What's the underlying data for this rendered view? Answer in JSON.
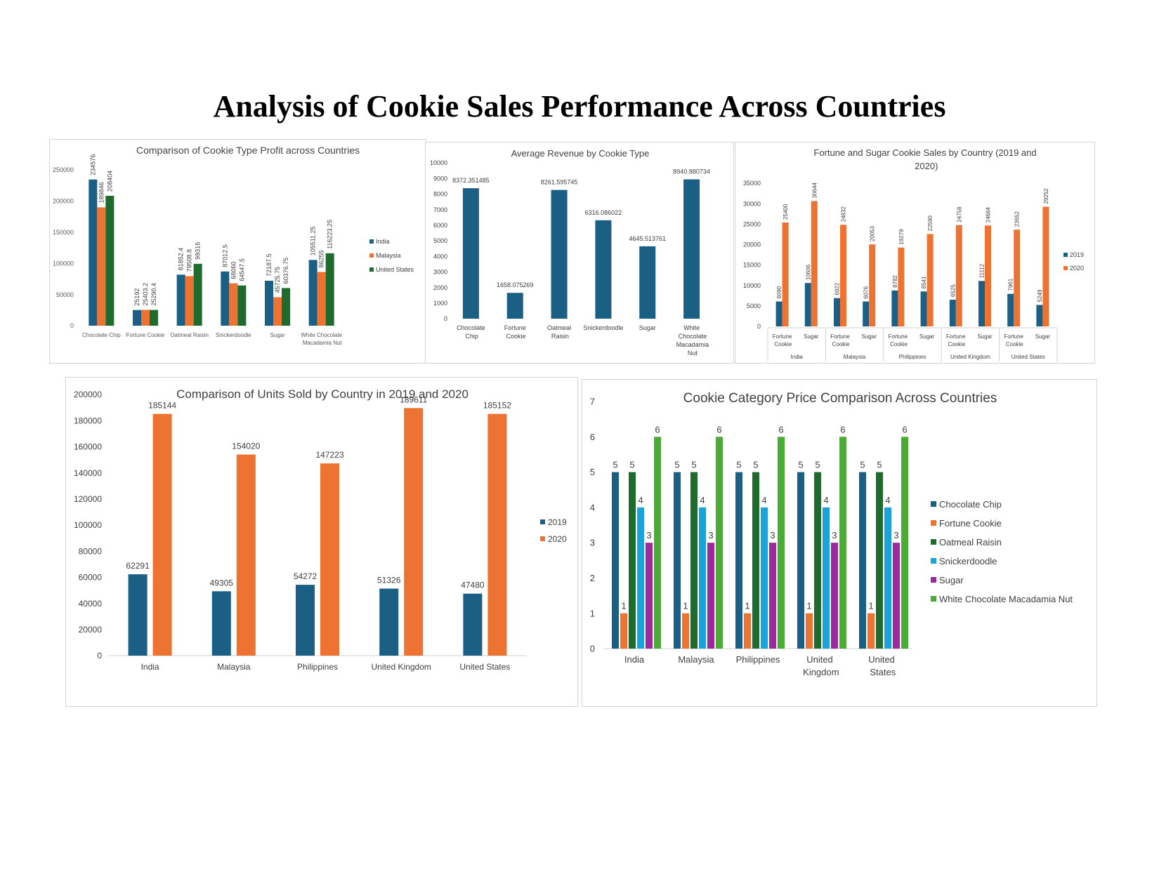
{
  "page": {
    "title": "Analysis of Cookie Sales Performance Across Countries"
  },
  "colors": {
    "blue": "#1b5f85",
    "orange": "#ec7332",
    "darkgreen": "#1e6b2d",
    "lightblue": "#1aa3d9",
    "purple": "#9b2a9b",
    "green": "#4aac34"
  },
  "chart_data": [
    {
      "type": "bar",
      "title": "Comparison of Cookie Type Profit across Countries",
      "categories": [
        "Chocolate Chip",
        "Fortune Cookie",
        "Oatmeal Raisin",
        "Snickerdoodle",
        "Sugar",
        "White Chocolate Macadamia Nut"
      ],
      "series": [
        {
          "name": "India",
          "values": [
            234576,
            25192,
            81852.4,
            87012.5,
            72187.5,
            105511.25
          ]
        },
        {
          "name": "Malaysia",
          "values": [
            189846,
            25403.2,
            79508.8,
            68060,
            45725.75,
            86255
          ]
        },
        {
          "name": "United States",
          "values": [
            208404,
            25290.4,
            99316,
            64547.5,
            60376.75,
            116223.25
          ]
        }
      ],
      "ylim": [
        0,
        250000
      ],
      "yticks": [
        "0",
        "50000",
        "100000",
        "150000",
        "200000",
        "250000"
      ],
      "legend": "right",
      "grid": false
    },
    {
      "type": "bar",
      "title": "Average Revenue by Cookie Type",
      "categories": [
        "Chocolate Chip",
        "Fortune Cookie",
        "Oatmeal Raisin",
        "Snickerdoodle",
        "Sugar",
        "White Chocolate Macadamia Nut"
      ],
      "values": [
        8372.351485,
        1658.075269,
        8261.595745,
        6316.086022,
        4645.513761,
        8940.880734
      ],
      "labels": [
        "8372.351485",
        "1658.075269",
        "8261.595745",
        "6316.086022",
        "4645.513761",
        "8940.880734"
      ],
      "ylim": [
        0,
        10000
      ],
      "yticks": [
        "0",
        "1000",
        "2000",
        "3000",
        "4000",
        "5000",
        "6000",
        "7000",
        "8000",
        "9000",
        "10000"
      ],
      "grid": false
    },
    {
      "type": "bar",
      "title": "Fortune and Sugar Cookie Sales by Country (2019 and 2020)",
      "groups": [
        "India",
        "Malaysia",
        "Philippines",
        "United Kingdom",
        "United States"
      ],
      "subcategories": [
        "Fortune Cookie",
        "Sugar"
      ],
      "series": [
        {
          "name": "2019",
          "values": [
            6090,
            10606,
            6922,
            6076,
            8782,
            8541,
            6525,
            11112,
            7961,
            5249
          ]
        },
        {
          "name": "2020",
          "values": [
            25400,
            30644,
            24832,
            20053,
            19279,
            22590,
            24758,
            24664,
            23652,
            29252
          ]
        }
      ],
      "ylim": [
        0,
        35000
      ],
      "yticks": [
        "0",
        "5000",
        "10000",
        "15000",
        "20000",
        "25000",
        "30000",
        "35000"
      ],
      "legend": "right",
      "grid": false
    },
    {
      "type": "bar",
      "title": "Comparison of Units Sold by Country in 2019 and 2020",
      "categories": [
        "India",
        "Malaysia",
        "Philippines",
        "United Kingdom",
        "United States"
      ],
      "series": [
        {
          "name": "2019",
          "values": [
            62291,
            49305,
            54272,
            51326,
            47480
          ]
        },
        {
          "name": "2020",
          "values": [
            185144,
            154020,
            147223,
            189611,
            185152
          ]
        }
      ],
      "ylim": [
        0,
        200000
      ],
      "yticks": [
        "0",
        "20000",
        "40000",
        "60000",
        "80000",
        "100000",
        "120000",
        "140000",
        "160000",
        "180000",
        "200000"
      ],
      "legend": "right",
      "grid": false
    },
    {
      "type": "bar",
      "title": "Cookie Category Price Comparison Across Countries",
      "categories": [
        "India",
        "Malaysia",
        "Philippines",
        "United Kingdom",
        "United States"
      ],
      "series": [
        {
          "name": "Chocolate Chip",
          "values": [
            5,
            5,
            5,
            5,
            5
          ]
        },
        {
          "name": "Fortune Cookie",
          "values": [
            1,
            1,
            1,
            1,
            1
          ]
        },
        {
          "name": "Oatmeal Raisin",
          "values": [
            5,
            5,
            5,
            5,
            5
          ]
        },
        {
          "name": "Snickerdoodle",
          "values": [
            4,
            4,
            4,
            4,
            4
          ]
        },
        {
          "name": "Sugar",
          "values": [
            3,
            3,
            3,
            3,
            3
          ]
        },
        {
          "name": "White Chocolate Macadamia Nut",
          "values": [
            6,
            6,
            6,
            6,
            6
          ]
        }
      ],
      "ylim": [
        0,
        7
      ],
      "yticks": [
        "0",
        "1",
        "2",
        "3",
        "4",
        "5",
        "6",
        "7"
      ],
      "legend": "right",
      "grid": false
    }
  ]
}
